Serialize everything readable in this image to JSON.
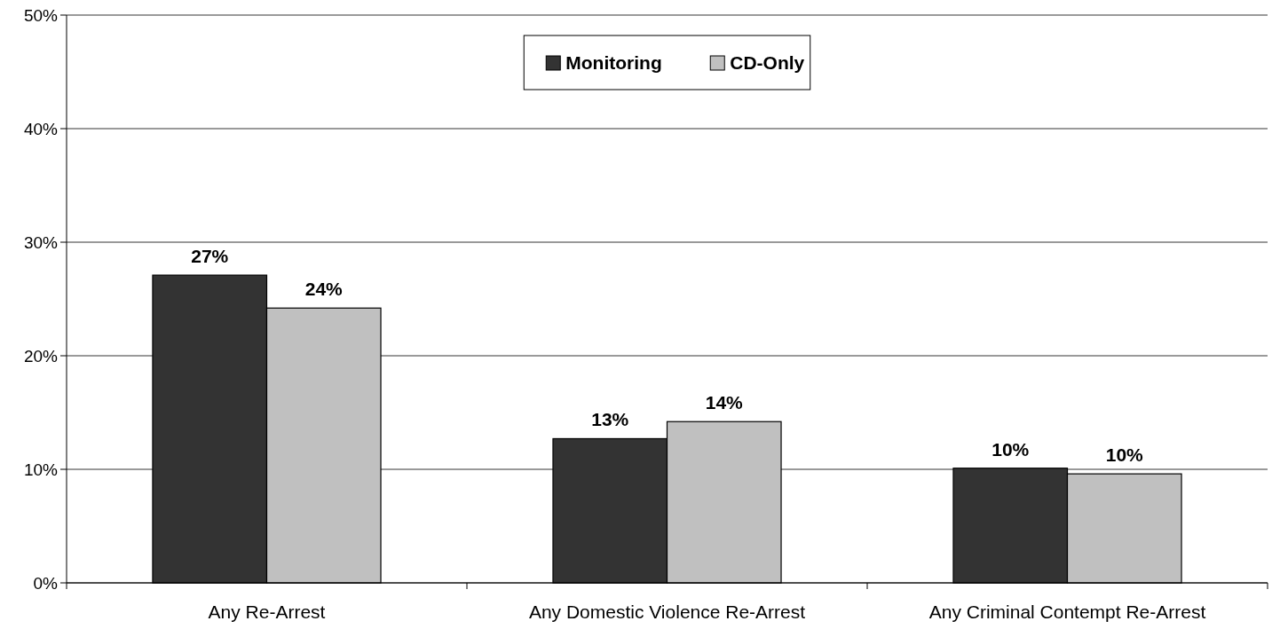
{
  "chart_data": {
    "type": "bar",
    "categories": [
      "Any Re-Arrest",
      "Any Domestic Violence Re-Arrest",
      "Any Criminal Contempt Re-Arrest"
    ],
    "series": [
      {
        "name": "Monitoring",
        "color": "#333333",
        "values": [
          27.1,
          12.7,
          10.1
        ],
        "value_labels": [
          "27%",
          "13%",
          "10%"
        ]
      },
      {
        "name": "CD-Only",
        "color": "#c0c0c0",
        "values": [
          24.2,
          14.2,
          9.6
        ],
        "value_labels": [
          "24%",
          "14%",
          "10%"
        ]
      }
    ],
    "ylim": [
      0,
      50
    ],
    "yticks": [
      {
        "value": 0,
        "label": "0%"
      },
      {
        "value": 10,
        "label": "10%"
      },
      {
        "value": 20,
        "label": "20%"
      },
      {
        "value": 30,
        "label": "30%"
      },
      {
        "value": 40,
        "label": "40%"
      },
      {
        "value": 50,
        "label": "50%"
      }
    ],
    "grid": "y",
    "legend": "top"
  }
}
